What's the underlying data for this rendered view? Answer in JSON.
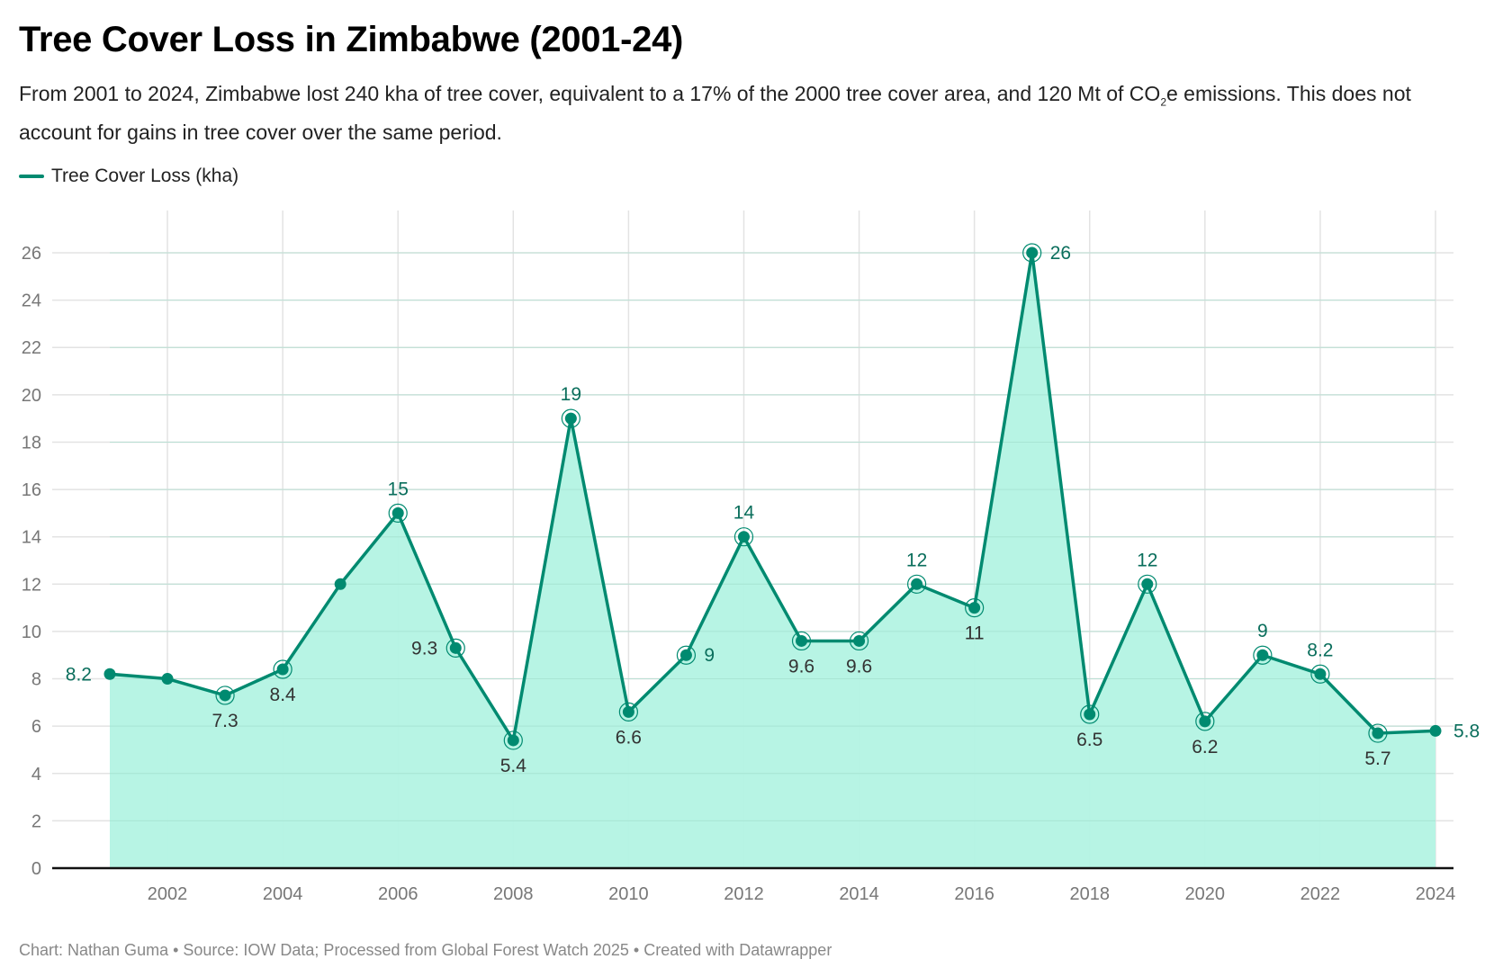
{
  "title": "Tree Cover Loss in Zimbabwe (2001-24)",
  "subtitle_part1": "From 2001 to 2024, Zimbabwe lost 240 kha of tree cover, equivalent to a 17% of the 2000 tree cover area, and 120 Mt of CO",
  "subtitle_sub": "2",
  "subtitle_part2": "e emissions. This does not account for gains in tree cover over the same period.",
  "footer": "Chart: Nathan Guma  • Source: IOW Data; Processed from Global Forest Watch 2025 • Created with Datawrapper",
  "colors": {
    "line": "#008a70",
    "area": "#b3f3e3"
  },
  "chart_data": {
    "type": "area",
    "title": "Tree Cover Loss in Zimbabwe (2001-24)",
    "legend": [
      {
        "name": "Tree Cover Loss (kha)",
        "position": "top-left"
      }
    ],
    "x": [
      2001,
      2002,
      2003,
      2004,
      2005,
      2006,
      2007,
      2008,
      2009,
      2010,
      2011,
      2012,
      2013,
      2014,
      2015,
      2016,
      2017,
      2018,
      2019,
      2020,
      2021,
      2022,
      2023,
      2024
    ],
    "series": [
      {
        "name": "Tree Cover Loss (kha)",
        "values": [
          8.2,
          8.0,
          7.3,
          8.4,
          12,
          15,
          9.3,
          5.4,
          19,
          6.6,
          9,
          14,
          9.6,
          9.6,
          12,
          11,
          26,
          6.5,
          12,
          6.2,
          9,
          8.2,
          5.7,
          5.8
        ]
      }
    ],
    "data_labels": [
      "8.2",
      "",
      "7.3",
      "8.4",
      "",
      "15",
      "9.3",
      "5.4",
      "19",
      "6.6",
      "9",
      "14",
      "9.6",
      "9.6",
      "12",
      "11",
      "26",
      "6.5",
      "12",
      "6.2",
      "9",
      "8.2",
      "5.7",
      "5.8"
    ],
    "label_placement": [
      "left",
      "",
      "below",
      "below",
      "",
      "above",
      "left",
      "below",
      "above",
      "below",
      "right",
      "above",
      "below",
      "below",
      "above",
      "below",
      "right",
      "below",
      "above",
      "below",
      "above",
      "above",
      "below",
      "right"
    ],
    "xticks": [
      "2002",
      "2004",
      "2006",
      "2008",
      "2010",
      "2012",
      "2014",
      "2016",
      "2018",
      "2020",
      "2022",
      "2024"
    ],
    "yticks": [
      "0",
      "2",
      "4",
      "6",
      "8",
      "10",
      "12",
      "14",
      "16",
      "18",
      "20",
      "22",
      "24",
      "26"
    ],
    "xlim": [
      2000,
      2024.2
    ],
    "ylim": [
      0,
      27.8
    ],
    "grid": true,
    "xlabel": "",
    "ylabel": ""
  }
}
